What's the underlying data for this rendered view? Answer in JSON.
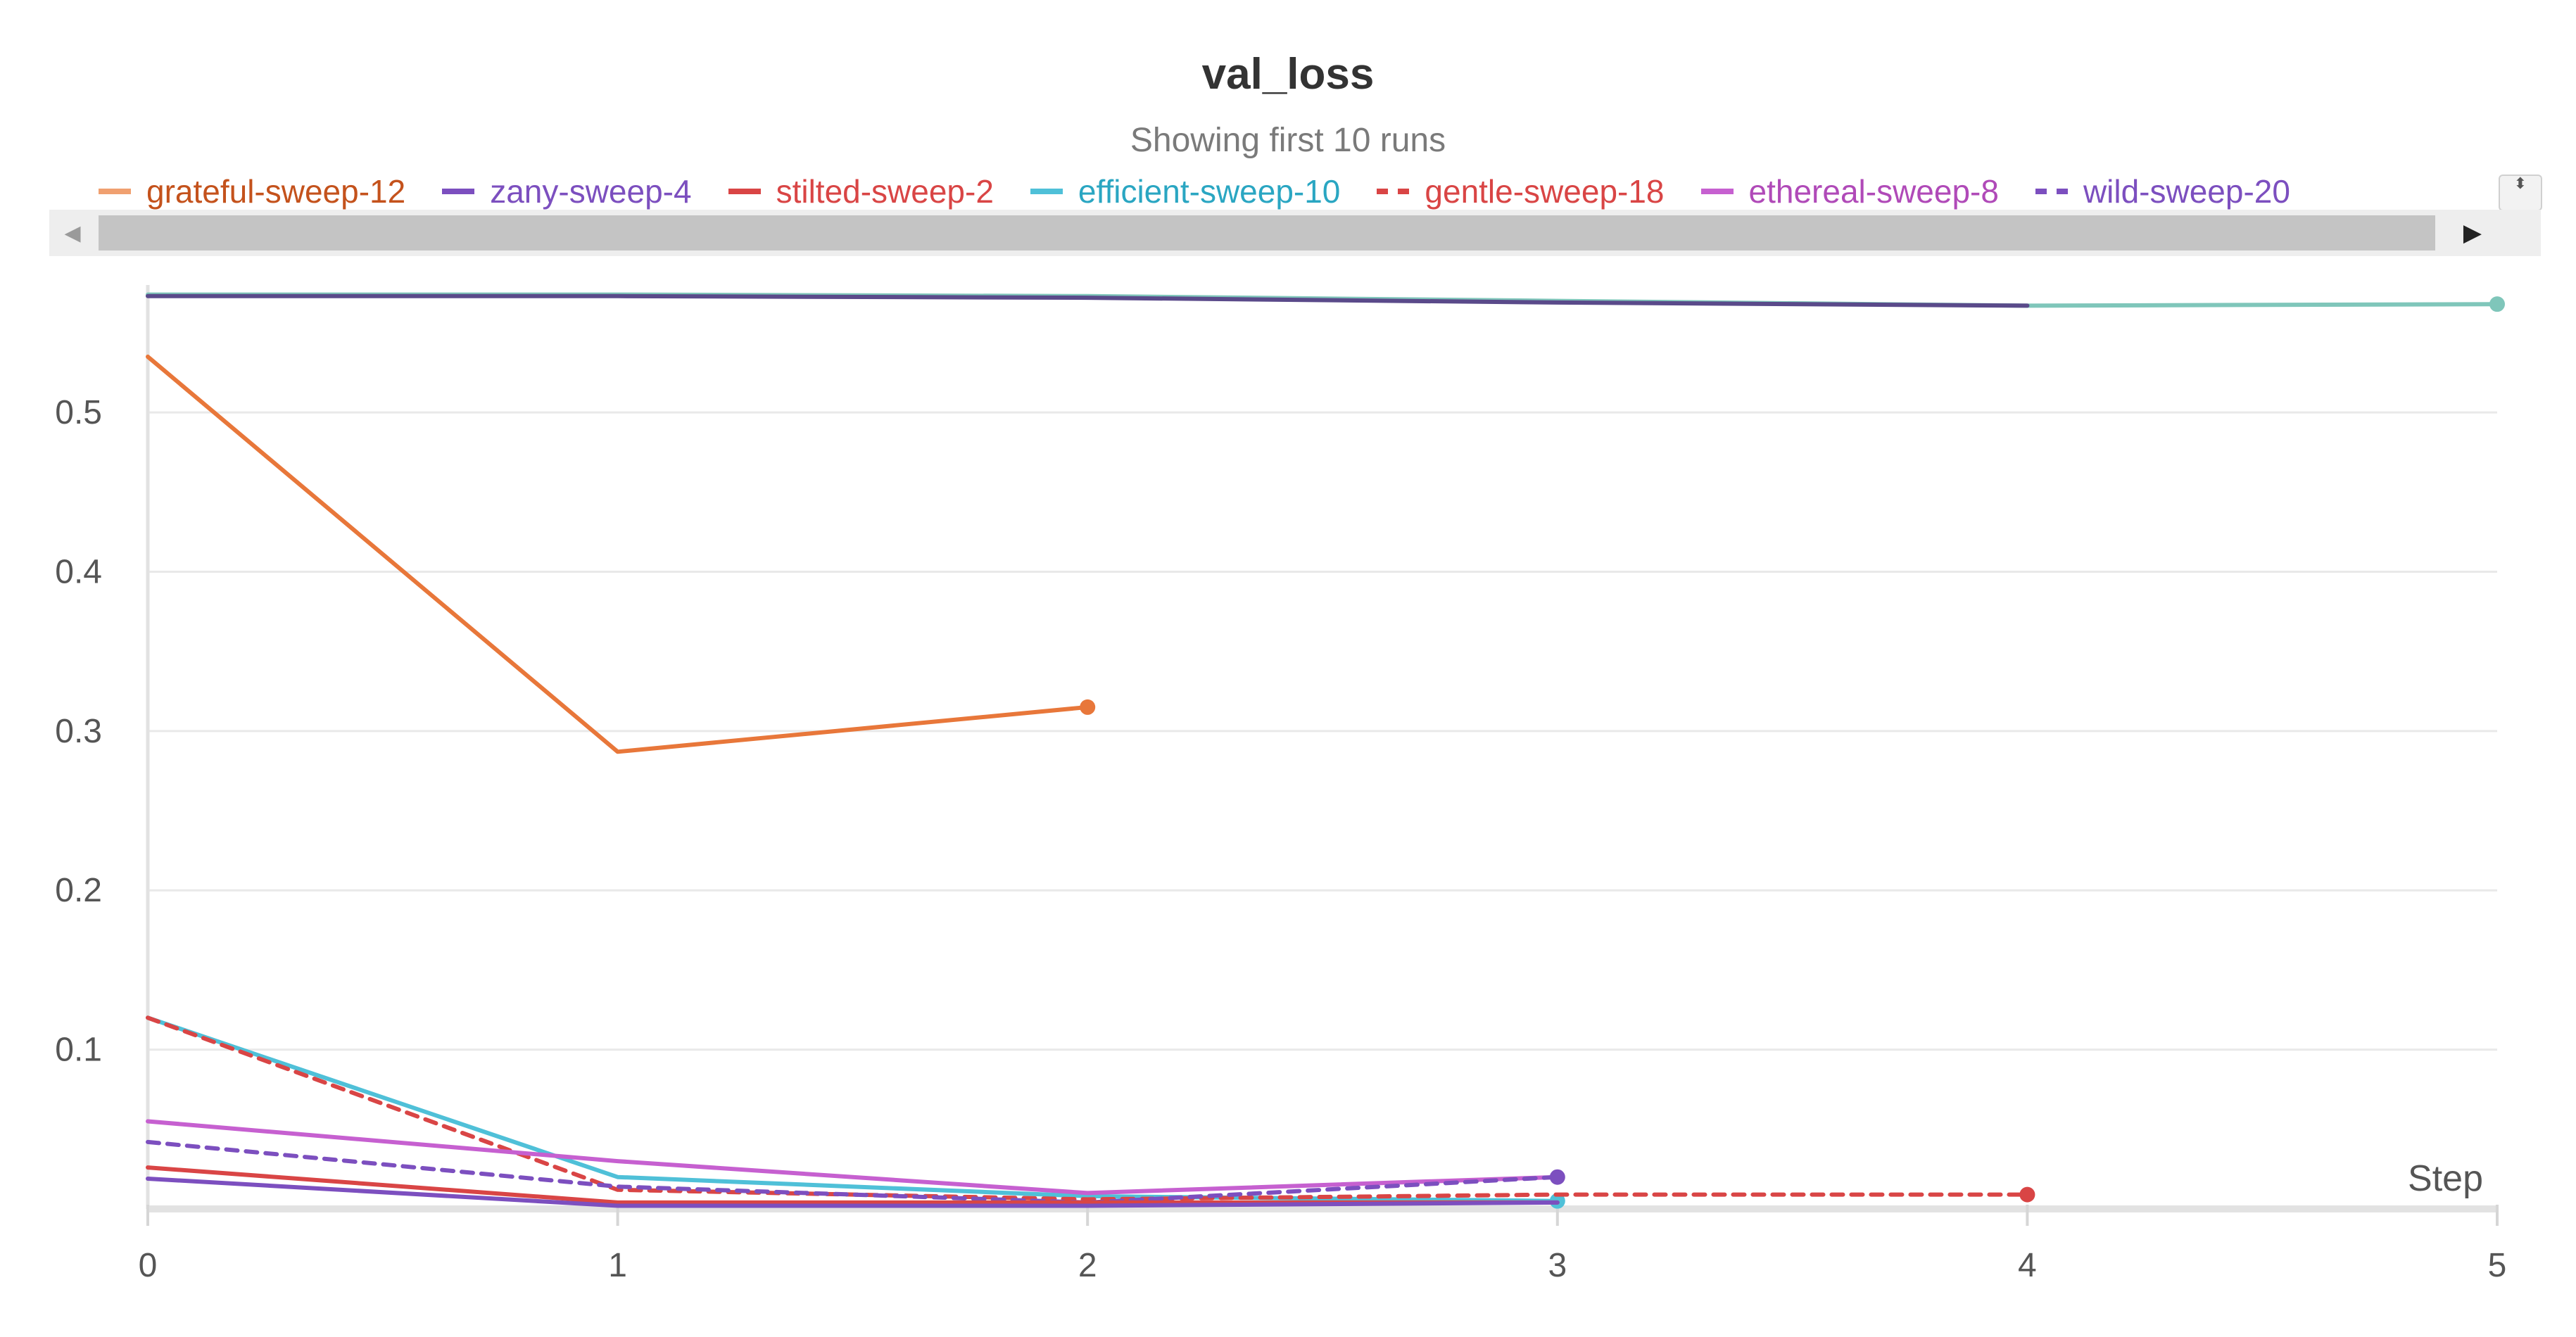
{
  "chart_data": {
    "type": "line",
    "title": "val_loss",
    "subtitle": "Showing first 10 runs",
    "xlabel": "Step",
    "ylabel": "",
    "xlim": [
      0,
      5
    ],
    "ylim": [
      0,
      0.58
    ],
    "xticks": [
      "0",
      "1",
      "2",
      "3",
      "4",
      "5"
    ],
    "yticks": [
      "0.1",
      "0.2",
      "0.3",
      "0.4",
      "0.5"
    ],
    "grid": true,
    "legend_position": "top",
    "legend": [
      {
        "name": "grateful-sweep-12",
        "color": "#f0a070",
        "text_color": "#c4521c",
        "dashed": false
      },
      {
        "name": "zany-sweep-4",
        "color": "#7c4fbf",
        "text_color": "#7c4fbf",
        "dashed": false
      },
      {
        "name": "stilted-sweep-2",
        "color": "#d94545",
        "text_color": "#d94545",
        "dashed": false
      },
      {
        "name": "efficient-sweep-10",
        "color": "#4fc0d8",
        "text_color": "#2aa6c2",
        "dashed": false
      },
      {
        "name": "gentle-sweep-18",
        "color": "#d94545",
        "text_color": "#d94545",
        "dashed": true
      },
      {
        "name": "ethereal-sweep-8",
        "color": "#c660d0",
        "text_color": "#b04ab8",
        "dashed": false
      },
      {
        "name": "wild-sweep-20",
        "color": "#7c4fbf",
        "text_color": "#7c4fbf",
        "dashed": true
      }
    ],
    "series": [
      {
        "color": "#7fc6ba",
        "dashed": false,
        "x": [
          0,
          1,
          2,
          3,
          4,
          5
        ],
        "y": [
          0.574,
          0.574,
          0.573,
          0.57,
          0.567,
          0.568
        ],
        "end_marker": true
      },
      {
        "color": "#5a4a8a",
        "dashed": false,
        "x": [
          0,
          1,
          2,
          3,
          4
        ],
        "y": [
          0.573,
          0.573,
          0.572,
          0.569,
          0.567
        ],
        "end_marker": false
      },
      {
        "color": "#e8773a",
        "dashed": false,
        "x": [
          0,
          1,
          2
        ],
        "y": [
          0.535,
          0.287,
          0.315
        ],
        "end_marker": true
      },
      {
        "color": "#4fc0d8",
        "dashed": false,
        "x": [
          0,
          1,
          2,
          3
        ],
        "y": [
          0.12,
          0.02,
          0.008,
          0.005
        ],
        "end_marker": true
      },
      {
        "color": "#d94545",
        "dashed": true,
        "x": [
          0,
          1,
          2,
          3,
          4
        ],
        "y": [
          0.12,
          0.012,
          0.006,
          0.009,
          0.009
        ],
        "end_marker": true
      },
      {
        "color": "#c660d0",
        "dashed": false,
        "x": [
          0,
          1,
          2,
          3
        ],
        "y": [
          0.055,
          0.03,
          0.01,
          0.02
        ],
        "end_marker": false
      },
      {
        "color": "#7c4fbf",
        "dashed": true,
        "x": [
          0,
          1,
          2,
          3
        ],
        "y": [
          0.042,
          0.014,
          0.004,
          0.02
        ],
        "end_marker": true
      },
      {
        "color": "#d94545",
        "dashed": false,
        "x": [
          0,
          1,
          2,
          3
        ],
        "y": [
          0.026,
          0.004,
          0.004,
          0.004
        ],
        "end_marker": false
      },
      {
        "color": "#7c4fbf",
        "dashed": false,
        "x": [
          0,
          1,
          2,
          3
        ],
        "y": [
          0.019,
          0.002,
          0.002,
          0.004
        ],
        "end_marker": false
      }
    ]
  },
  "legend_scroll": {
    "left_icon": "◀",
    "right_icon": "▶",
    "stepper_icon": "⬍"
  }
}
